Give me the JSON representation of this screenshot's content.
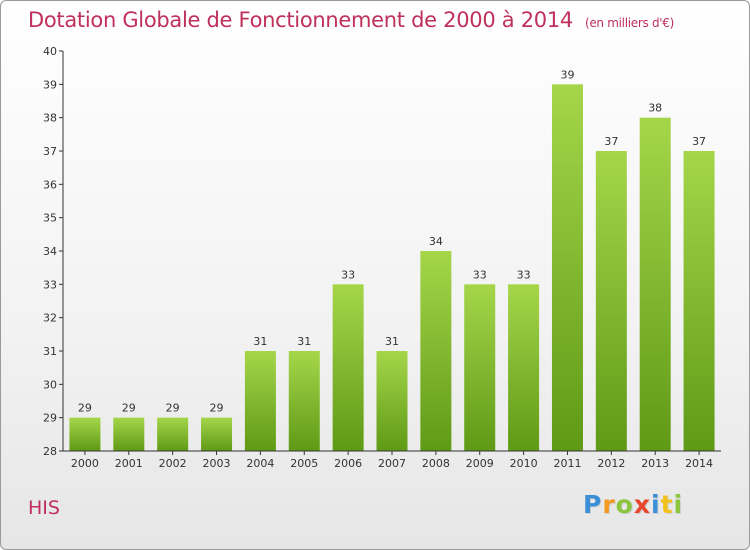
{
  "chart_data": {
    "type": "bar",
    "title": "Dotation Globale de Fonctionnement de 2000 à 2014",
    "subtitle": "(en milliers d'€)",
    "categories": [
      "2000",
      "2001",
      "2002",
      "2003",
      "2004",
      "2005",
      "2006",
      "2007",
      "2008",
      "2009",
      "2010",
      "2011",
      "2012",
      "2013",
      "2014"
    ],
    "values": [
      29,
      29,
      29,
      29,
      31,
      31,
      33,
      31,
      34,
      33,
      33,
      39,
      37,
      38,
      37
    ],
    "ylim": [
      28,
      40
    ],
    "yticks": [
      28,
      29,
      30,
      31,
      32,
      33,
      34,
      35,
      36,
      37,
      38,
      39,
      40
    ],
    "grid": false,
    "bar_color_top": "#a5d64a",
    "bar_color_bottom": "#5f9a16"
  },
  "commune": "HIS",
  "brand": {
    "letters": [
      "P",
      "r",
      "o",
      "x",
      "i",
      "t",
      "i"
    ],
    "colors": [
      "#3a8fd6",
      "#f29a1f",
      "#8cc63f",
      "#e8452c",
      "#3a8fd6",
      "#f2c21b",
      "#8cc63f"
    ]
  },
  "colors": {
    "title": "#c0305c",
    "axis": "#333333"
  }
}
